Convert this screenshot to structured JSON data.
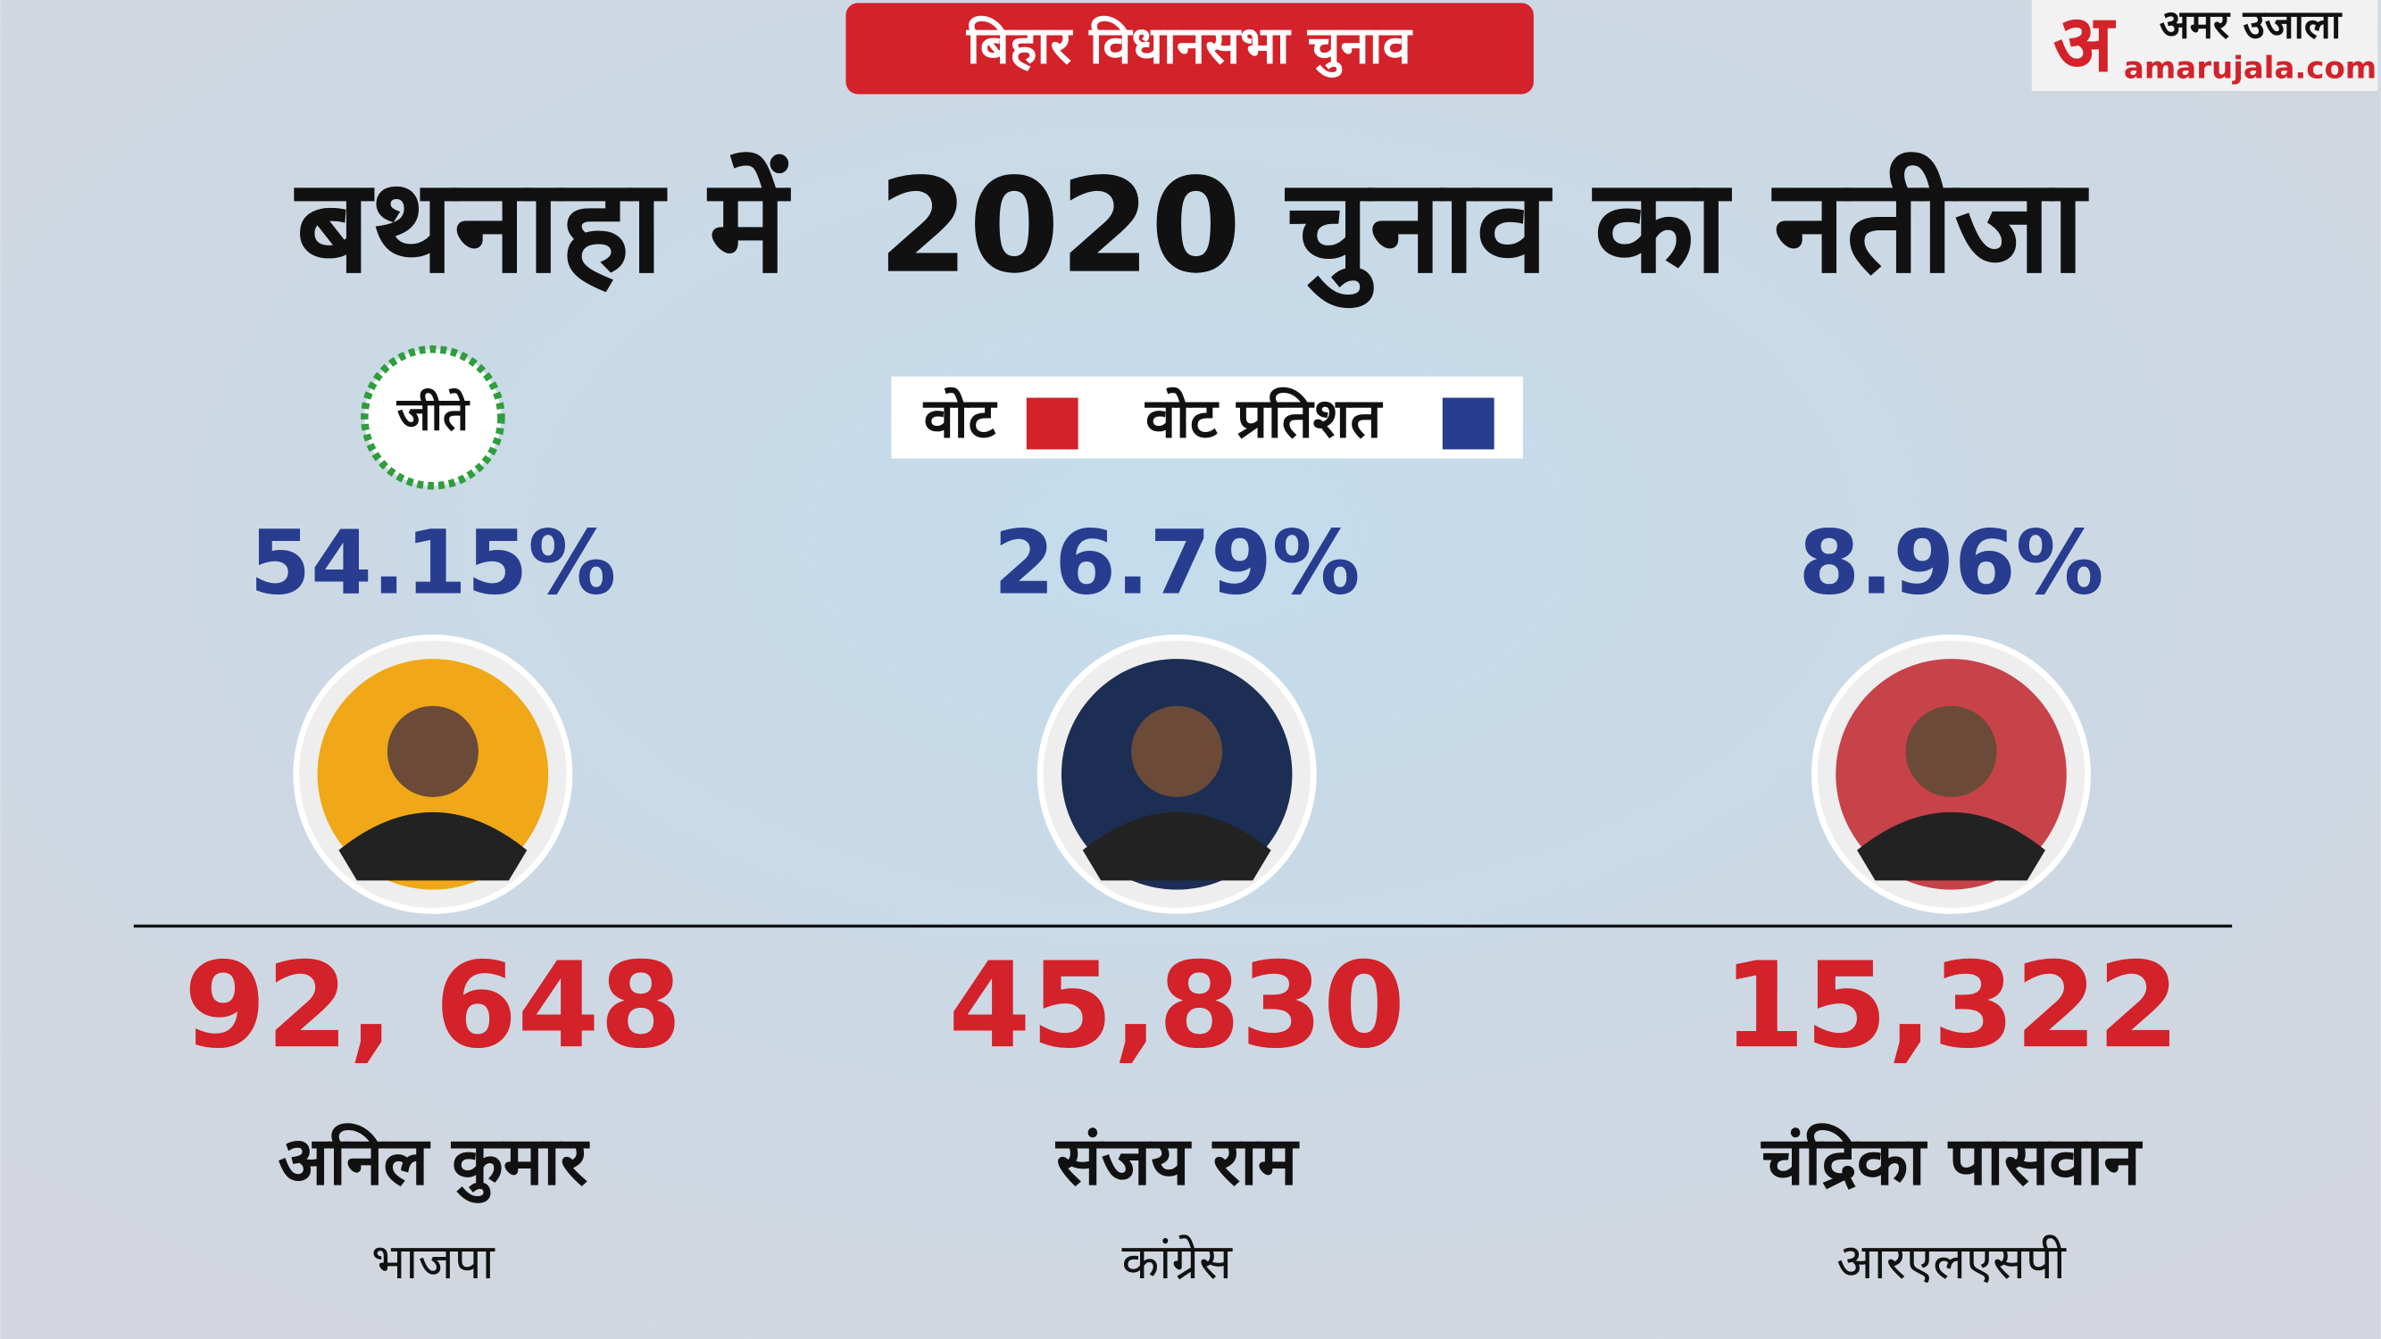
{
  "header": {
    "tag": "बिहार विधानसभा चुनाव",
    "title": "बथनाहा में  2020 चुनाव का नतीजा"
  },
  "logo": {
    "mark": "अ",
    "name": "अमर उजाला",
    "site": "amarujala.com"
  },
  "legend": {
    "items": [
      {
        "label": "वोट",
        "color": "#d3222a"
      },
      {
        "label": "वोट प्रतिशत",
        "color": "#283d8f"
      }
    ]
  },
  "winner_badge": "जीते",
  "candidates": [
    {
      "percent": "54.15%",
      "votes": "92, 648",
      "name": "अनिल कुमार",
      "party": "भाजपा"
    },
    {
      "percent": "26.79%",
      "votes": "45,830",
      "name": "संजय राम",
      "party": "कांग्रेस"
    },
    {
      "percent": "8.96%",
      "votes": "15,322",
      "name": "चंद्रिका पासवान",
      "party": "आरएलएसपी"
    }
  ]
}
